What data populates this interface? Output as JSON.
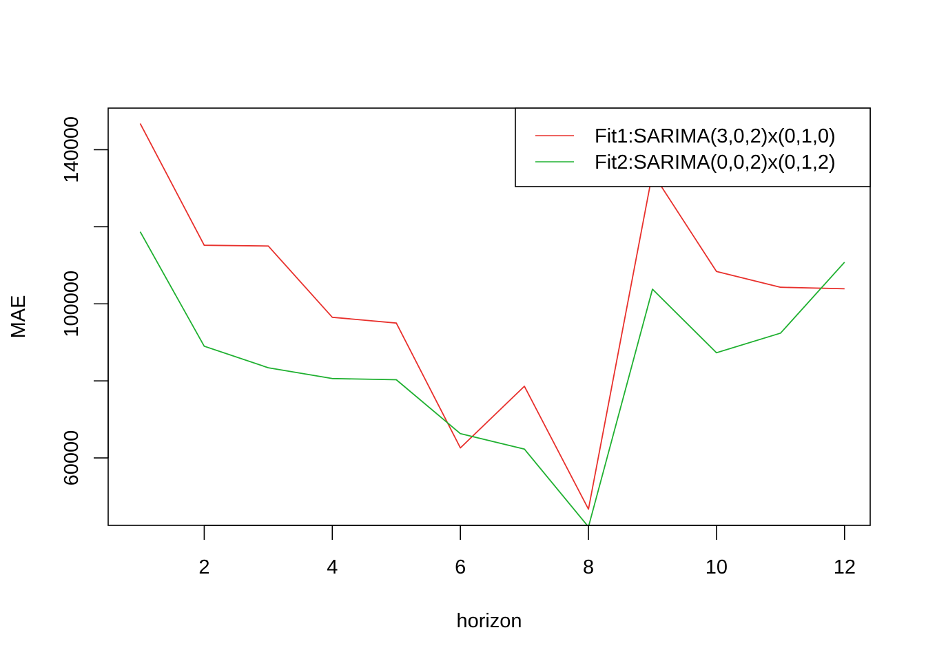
{
  "chart_data": {
    "type": "line",
    "title": "",
    "xlabel": "horizon",
    "ylabel": "MAE",
    "x": [
      1,
      2,
      3,
      4,
      5,
      6,
      7,
      8,
      9,
      10,
      11,
      12
    ],
    "xlim": [
      0.5,
      12.4
    ],
    "ylim": [
      42500,
      150800
    ],
    "x_ticks": [
      2,
      4,
      6,
      8,
      10,
      12
    ],
    "y_ticks": [
      60000,
      100000,
      140000
    ],
    "y_tick_labels": [
      "60000",
      "100000",
      "140000"
    ],
    "grid": false,
    "legend_position": "top-right",
    "series": [
      {
        "name": "Fit1:SARIMA(3,0,2)x(0,1,0)",
        "color": "#e8302c",
        "values": [
          146800,
          115200,
          115000,
          96500,
          95000,
          62600,
          78600,
          46700,
          134000,
          108400,
          104300,
          103900
        ]
      },
      {
        "name": "Fit2:SARIMA(0,0,2)x(0,1,2)",
        "color": "#1fb030",
        "values": [
          118700,
          89000,
          83400,
          80600,
          80300,
          66300,
          62300,
          42100,
          103800,
          87300,
          92400,
          110800
        ]
      }
    ]
  }
}
